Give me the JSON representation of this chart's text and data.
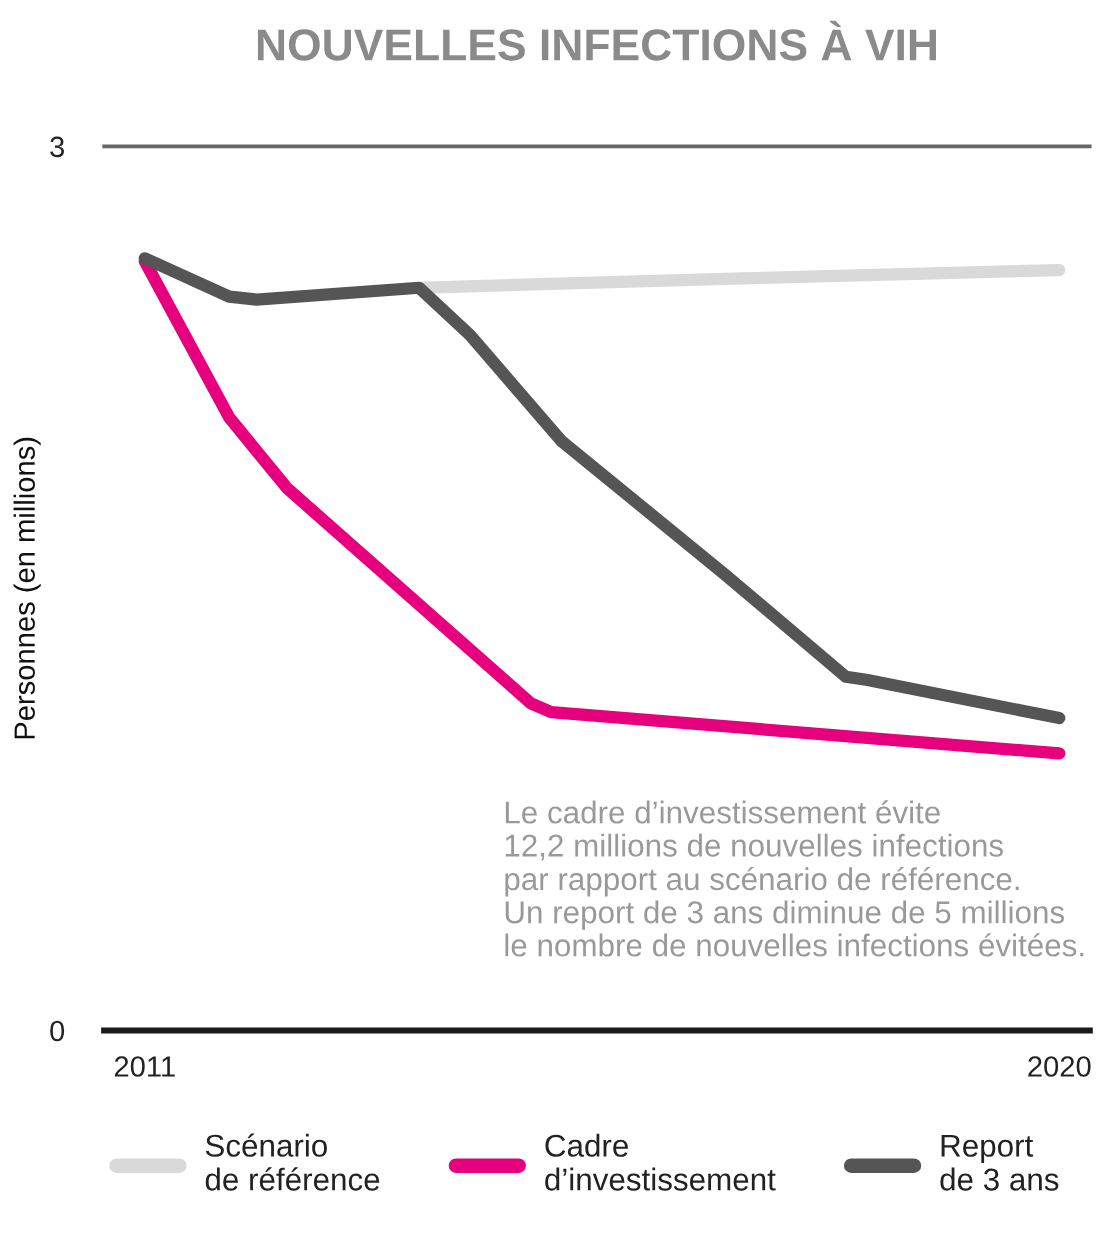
{
  "chart_data": {
    "type": "line",
    "title": "NOUVELLES INFECTIONS À VIH",
    "ylabel": "Personnes (en millions)",
    "series": [
      {
        "name": "Scénario\nde référence",
        "color": "#d9d9d9",
        "x": [
          2013.7,
          2016.7,
          2020
        ],
        "values": [
          2.52,
          2.55,
          2.58
        ]
      },
      {
        "name": "Cadre\nd’investissement",
        "color": "#e6007e",
        "x": [
          2011,
          2011.83,
          2012.4,
          2014.8,
          2015.0,
          2020
        ],
        "values": [
          2.61,
          2.08,
          1.84,
          1.11,
          1.08,
          0.94
        ]
      },
      {
        "name": "Report\nde 3 ans",
        "color": "#555555",
        "x": [
          2011,
          2011.83,
          2012.1,
          2013.7,
          2014.2,
          2015.1,
          2016.7,
          2017.9,
          2018.1,
          2020
        ],
        "values": [
          2.62,
          2.49,
          2.48,
          2.52,
          2.36,
          2.0,
          1.55,
          1.2,
          1.19,
          1.06
        ]
      }
    ],
    "xlim": [
      2010.6,
      2020.3
    ],
    "xticks": [
      2011,
      2020
    ],
    "ylim": [
      0,
      3
    ],
    "yticks": [
      0,
      3
    ],
    "legend": "bottom",
    "line_style": "solid",
    "annotations": [
      "Le cadre d’investissement évite\n12,2 millions de nouvelles infections\npar rapport au scénario de référence.\nUn report de 3 ans diminue de 5 millions\nle nombre de nouvelles infections évitées."
    ]
  }
}
